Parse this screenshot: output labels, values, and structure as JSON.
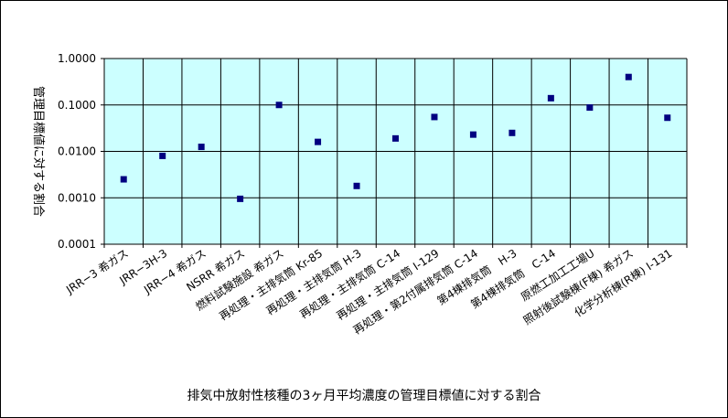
{
  "caption": "排気中放射性核種の3ヶ月平均濃度の管理目標値に対する割合",
  "chart_data": {
    "type": "scatter",
    "title": "",
    "xlabel": "",
    "ylabel": "管理目標値に対する割合",
    "y_scale": "log",
    "ylim": [
      0.0001,
      1.0
    ],
    "y_ticks": [
      "0.0001",
      "0.0010",
      "0.0100",
      "0.1000",
      "1.0000"
    ],
    "grid": true,
    "plot_bg_color": "#CCFFFF",
    "marker_color": "#000080",
    "categories": [
      "JRR−3 希ガス",
      "JRR−3H-3",
      "JRR−4 希ガス",
      "NSRR 希ガス",
      "燃料試験施設 希ガス",
      "再処理・主排気筒 Kr-85",
      "再処理・主排気筒 H-3",
      "再処理・主排気筒 C-14",
      "再処理・主排気筒 I-129",
      "再処理・第2付属排気筒 C-14",
      "第4棟排気筒　H-3",
      "第4棟排気筒　C-14",
      "原燃工加工工場U",
      "照射後試験棟(F棟) 希ガス",
      "化学分析棟(R棟) I-131"
    ],
    "values": [
      0.0025,
      0.008,
      0.0125,
      0.00095,
      0.1,
      0.016,
      0.0018,
      0.019,
      0.055,
      0.023,
      0.025,
      0.14,
      0.088,
      0.4,
      0.053
    ]
  }
}
